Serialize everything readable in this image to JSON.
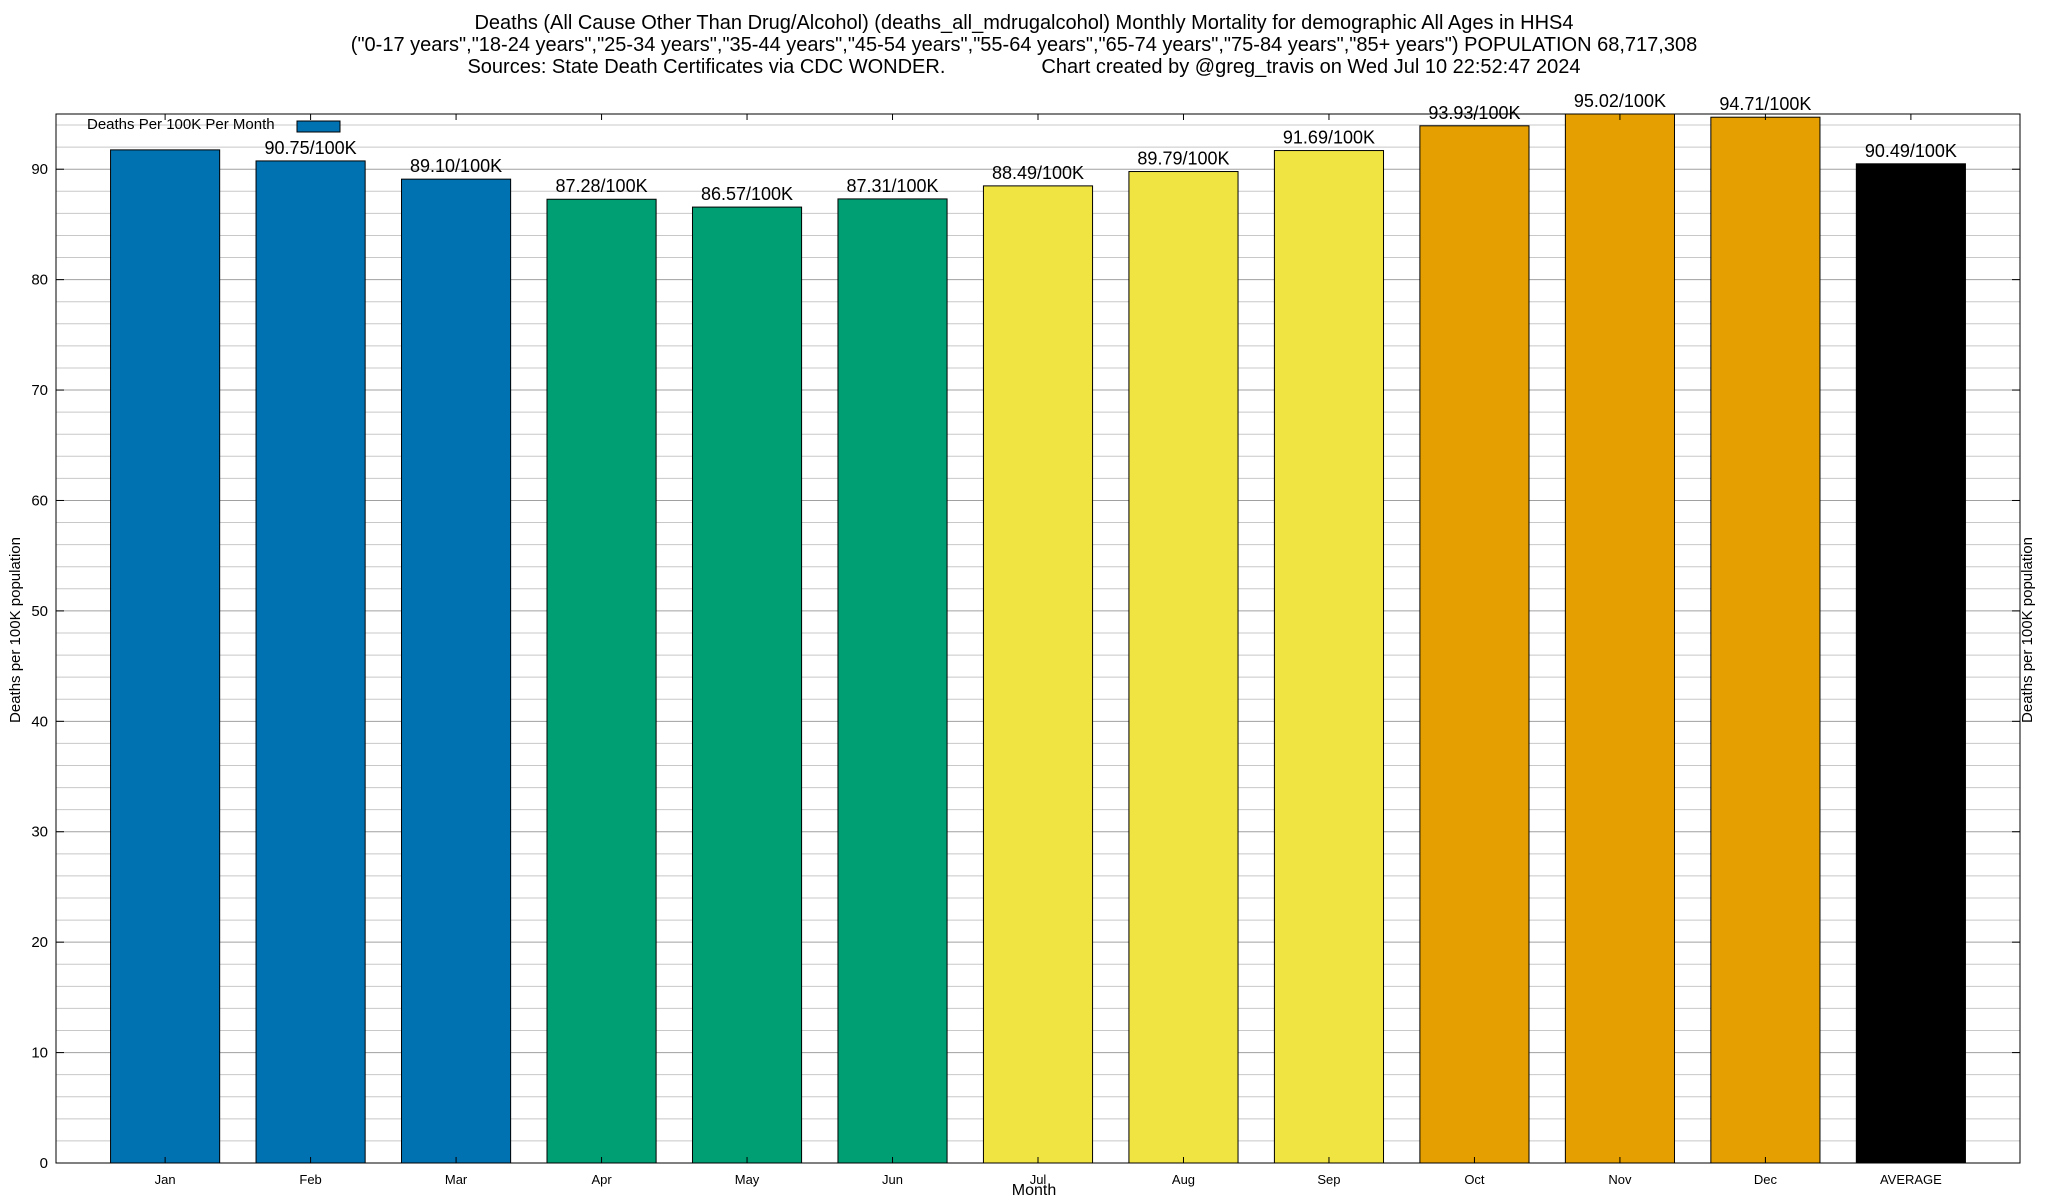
{
  "chart_data": {
    "type": "bar",
    "title": "Deaths (All Cause Other Than Drug/Alcohol) (deaths_all_mdrugalcohol) Monthly Mortality for demographic All Ages in HHS4",
    "subtitle": "(\"0-17 years\",\"18-24 years\",\"25-34 years\",\"35-44 years\",\"45-54 years\",\"55-64 years\",\"65-74 years\",\"75-84 years\",\"85+ years\") POPULATION 68,717,308",
    "sources": "Sources: State Death Certificates via CDC WONDER.",
    "credit": "Chart created by @greg_travis on Wed Jul 10 22:52:47 2024",
    "xlabel": "Month",
    "ylabel": "Deaths per 100K population",
    "ylabel_right": "Deaths per 100K population",
    "ylim": [
      0,
      95
    ],
    "yticks": [
      0,
      10,
      20,
      30,
      40,
      50,
      60,
      70,
      80,
      90
    ],
    "grid": true,
    "legend": {
      "label": "Deaths Per 100K Per Month",
      "color": "#0072b2",
      "placement": "top-left"
    },
    "categories": [
      "Jan",
      "Feb",
      "Mar",
      "Apr",
      "May",
      "Jun",
      "Jul",
      "Aug",
      "Sep",
      "Oct",
      "Nov",
      "Dec",
      "AVERAGE"
    ],
    "values": [
      91.75,
      90.75,
      89.1,
      87.28,
      86.57,
      87.31,
      88.49,
      89.79,
      91.69,
      93.93,
      95.02,
      94.71,
      90.49
    ],
    "labels": [
      "",
      "90.75/100K",
      "89.10/100K",
      "87.28/100K",
      "86.57/100K",
      "87.31/100K",
      "88.49/100K",
      "89.79/100K",
      "91.69/100K",
      "93.93/100K",
      "95.02/100K",
      "94.71/100K",
      "90.49/100K"
    ],
    "colors": [
      "#0072b2",
      "#0072b2",
      "#0072b2",
      "#009e73",
      "#009e73",
      "#009e73",
      "#f0e442",
      "#f0e442",
      "#f0e442",
      "#e69f00",
      "#e69f00",
      "#e69f00",
      "#000000"
    ]
  }
}
